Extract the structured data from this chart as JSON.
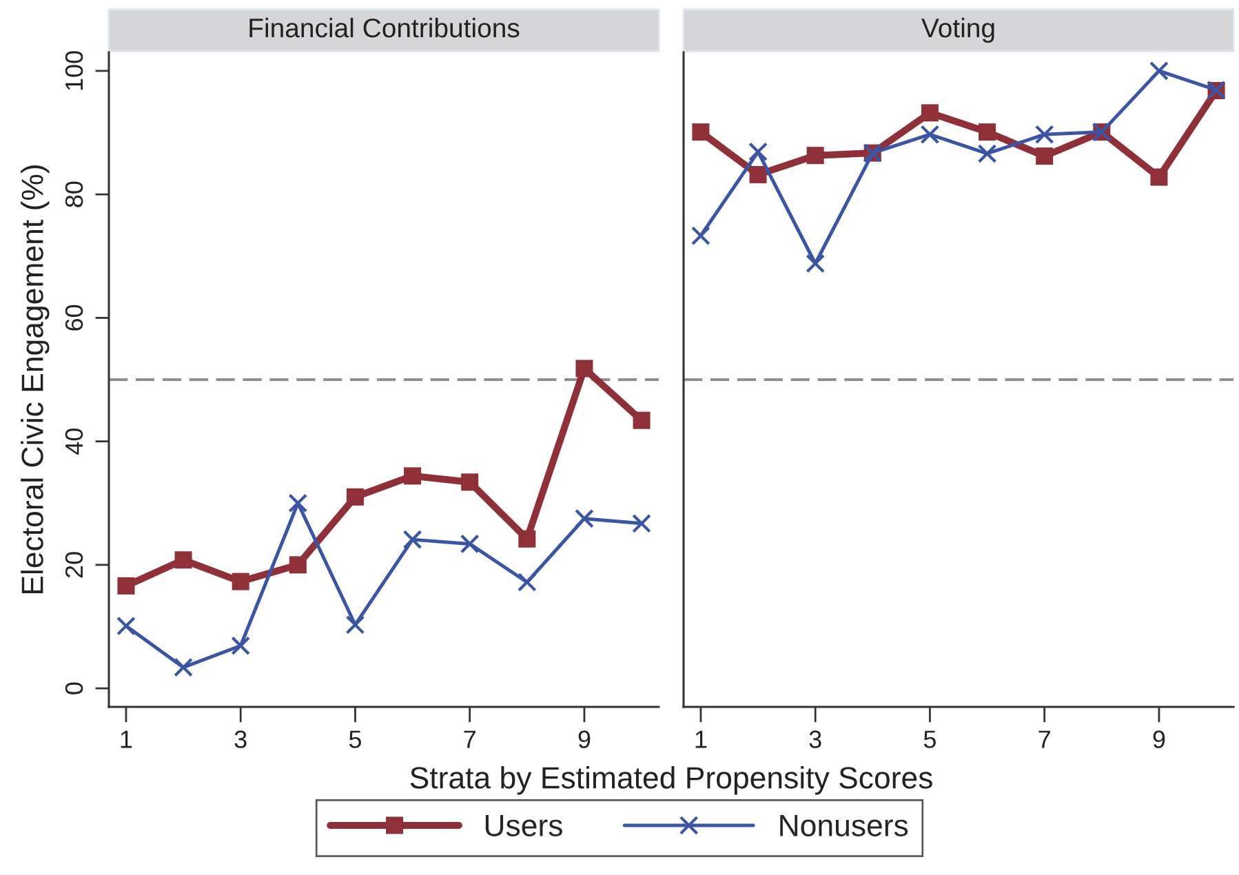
{
  "chart_data": [
    {
      "type": "line",
      "title": "Financial Contributions",
      "xlabel": "Strata by Estimated Propensity Scores",
      "ylabel": "Electoral Civic Engagement (%)",
      "x": [
        1,
        2,
        3,
        4,
        5,
        6,
        7,
        8,
        9,
        10
      ],
      "xlim": [
        0.7,
        10.3
      ],
      "xticks": [
        1,
        3,
        5,
        7,
        9
      ],
      "ylim": [
        -3,
        103
      ],
      "yticks": [
        0,
        20,
        40,
        60,
        80,
        100
      ],
      "line_style": "solid",
      "legend": "bottom",
      "ref_lines": [
        {
          "axis": "y",
          "value": 50,
          "color": "#8f8f8f",
          "line_style": "dashed"
        }
      ],
      "series": [
        {
          "name": "Users",
          "color": "#8f3038",
          "marker": "square",
          "values": [
            16.6,
            20.8,
            17.3,
            20.0,
            31.0,
            34.4,
            33.4,
            24.2,
            51.8,
            43.4
          ]
        },
        {
          "name": "Nonusers",
          "color": "#3b55a5",
          "marker": "cross",
          "values": [
            10.1,
            3.4,
            6.9,
            30.0,
            10.3,
            24.1,
            23.4,
            17.2,
            27.5,
            26.7
          ]
        }
      ]
    },
    {
      "type": "line",
      "title": "Voting",
      "x": [
        1,
        2,
        3,
        4,
        5,
        6,
        7,
        8,
        9,
        10
      ],
      "xlim": [
        0.7,
        10.3
      ],
      "xticks": [
        1,
        3,
        5,
        7,
        9
      ],
      "ylim": [
        -3,
        103
      ],
      "tick_labels": "x",
      "line_style": "solid",
      "ref_lines": [
        {
          "axis": "y",
          "value": 50,
          "color": "#8f8f8f",
          "line_style": "dashed"
        }
      ],
      "series": [
        {
          "name": "Users",
          "color": "#8f3038",
          "marker": "square",
          "values": [
            90.1,
            83.2,
            86.3,
            86.7,
            93.2,
            90.1,
            86.2,
            90.1,
            82.8,
            96.8
          ]
        },
        {
          "name": "Nonusers",
          "color": "#3b55a5",
          "marker": "cross",
          "values": [
            73.3,
            86.9,
            68.8,
            86.7,
            89.7,
            86.6,
            89.7,
            90.1,
            100,
            96.9
          ]
        }
      ]
    }
  ]
}
